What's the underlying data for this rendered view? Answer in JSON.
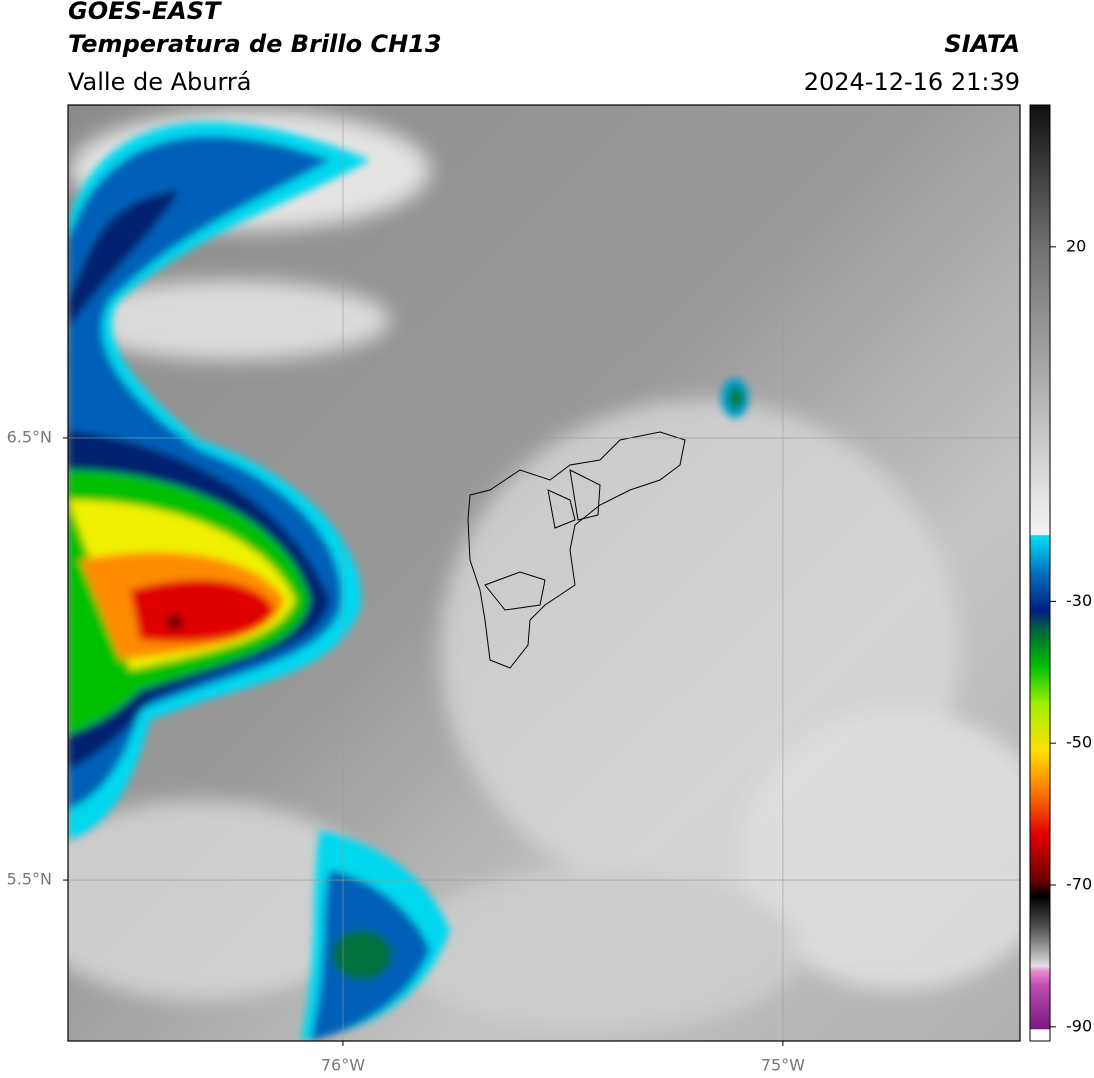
{
  "header": {
    "title": "GOES-EAST",
    "subtitle": "Temperatura de Brillo CH13",
    "region": "Valle de Aburrá",
    "source": "SIATA",
    "datetime": "2024-12-16 21:39"
  },
  "map": {
    "lonlim": [
      -76.625,
      -74.461
    ],
    "latlim": [
      5.136,
      7.253
    ],
    "lon_ticks": [
      {
        "value": -76,
        "label": "76°W"
      },
      {
        "value": -75,
        "label": "75°W"
      }
    ],
    "lat_ticks": [
      {
        "value": 6.5,
        "label": "6.5°N"
      },
      {
        "value": 5.5,
        "label": "5.5°N"
      }
    ],
    "grid": true
  },
  "colorbar": {
    "lim": [
      -92,
      40
    ],
    "ticks": [
      20,
      -30,
      -50,
      -70,
      -90
    ]
  }
}
